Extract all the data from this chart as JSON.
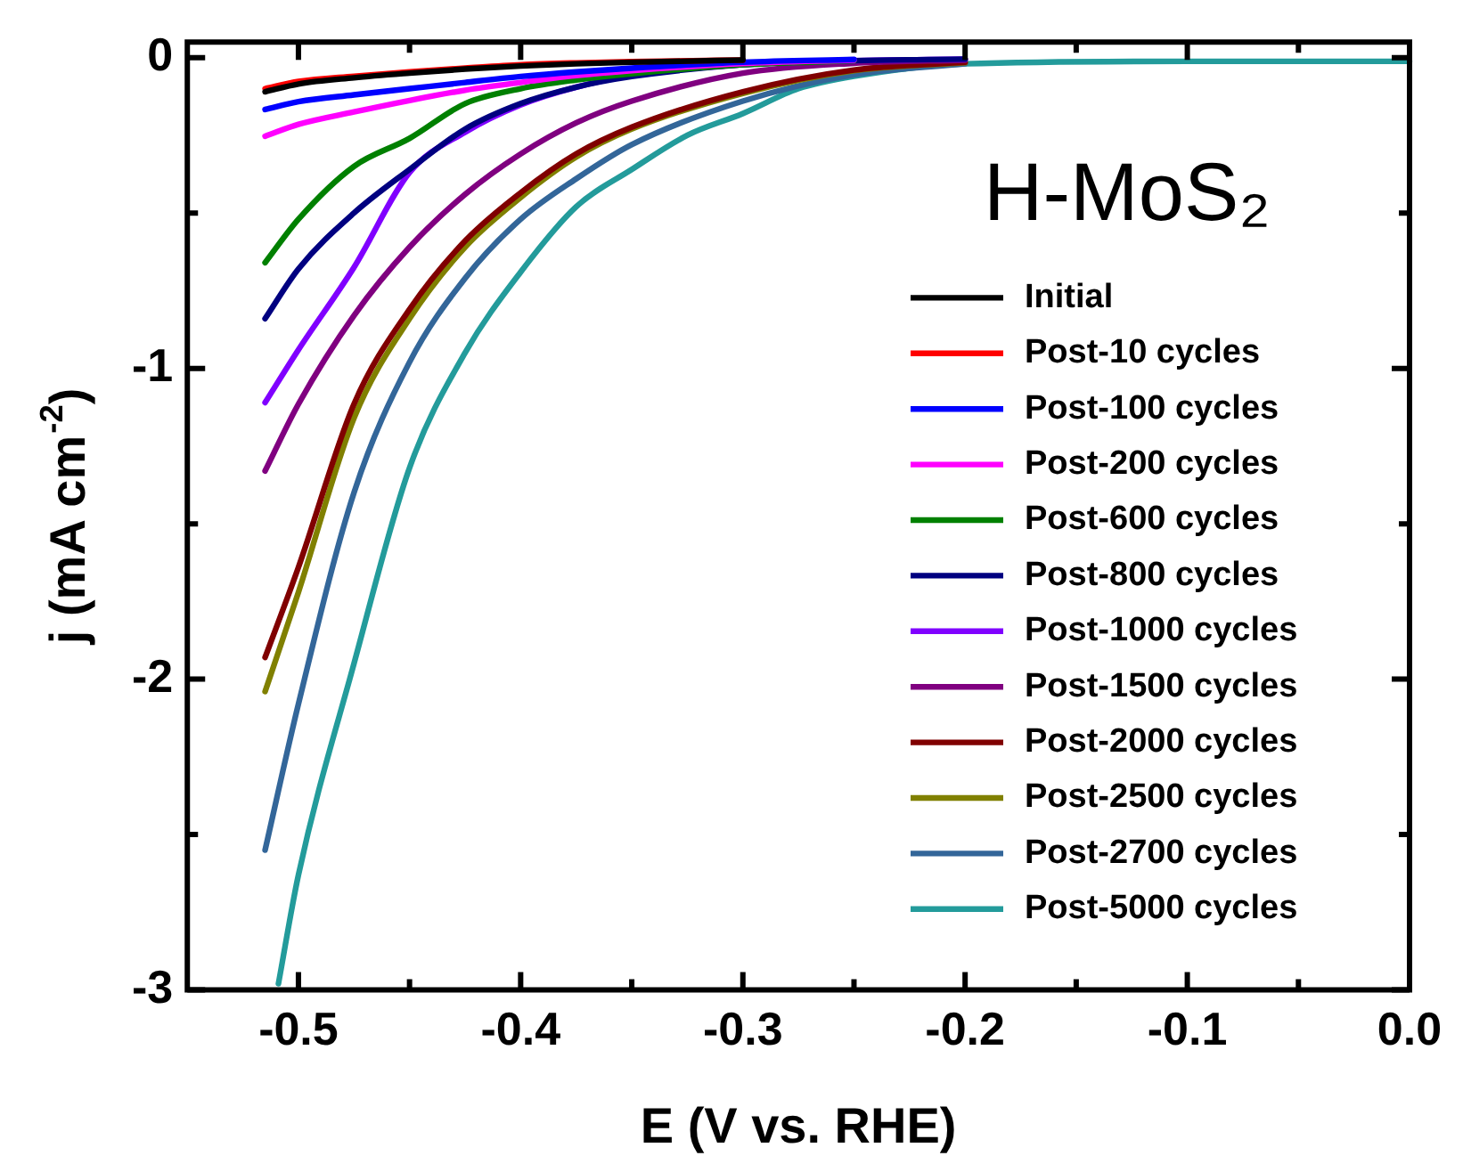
{
  "chart_data": {
    "type": "line",
    "xlabel": "E (V vs. RHE)",
    "ylabel": "j (mA cm$^{-2}$)",
    "annotations": [
      "H-MoS₂"
    ],
    "xlim": [
      -0.55,
      0
    ],
    "ylim": [
      -3,
      0.05
    ],
    "xticks": [
      {
        "value": -0.5,
        "label": "-0.5"
      },
      {
        "value": -0.45,
        "label": null
      },
      {
        "value": -0.4,
        "label": "-0.4"
      },
      {
        "value": -0.35,
        "label": null
      },
      {
        "value": -0.3,
        "label": "-0.3"
      },
      {
        "value": -0.25,
        "label": null
      },
      {
        "value": -0.2,
        "label": "-0.2"
      },
      {
        "value": -0.15,
        "label": null
      },
      {
        "value": -0.1,
        "label": "-0.1"
      },
      {
        "value": -0.05,
        "label": null
      },
      {
        "value": 0,
        "label": "0.0"
      }
    ],
    "yticks": [
      {
        "value": 0,
        "label": "0"
      },
      {
        "value": -0.5,
        "label": null
      },
      {
        "value": -1,
        "label": "-1"
      },
      {
        "value": -1.5,
        "label": null
      },
      {
        "value": -2,
        "label": "-2"
      },
      {
        "value": -2.5,
        "label": null
      },
      {
        "value": -3,
        "label": "-3"
      }
    ],
    "grid": false,
    "legend": "right",
    "marker": "none",
    "line_style": "solid",
    "x": [
      -0.515,
      -0.5,
      -0.475,
      -0.45,
      -0.425,
      -0.4,
      -0.375,
      -0.35,
      -0.3,
      -0.25,
      -0.2
    ],
    "series": [
      {
        "name": "Initial",
        "color": "#000000",
        "values": [
          -0.11,
          -0.085,
          -0.065,
          -0.05,
          -0.037,
          -0.027,
          -0.02,
          -0.015,
          -0.008,
          null,
          null
        ]
      },
      {
        "name": "Post-10 cycles",
        "color": "#ff0000",
        "values": [
          -0.1,
          -0.077,
          -0.06,
          -0.046,
          -0.034,
          -0.023,
          -0.017,
          -0.013,
          -0.008,
          null,
          null
        ]
      },
      {
        "name": "Post-100 cycles",
        "color": "#0000ff",
        "values": [
          -0.167,
          -0.142,
          -0.12,
          -0.1,
          -0.08,
          -0.061,
          -0.046,
          -0.034,
          -0.015,
          -0.006,
          null
        ]
      },
      {
        "name": "Post-200 cycles",
        "color": "#ff00ff",
        "values": [
          -0.253,
          -0.215,
          -0.175,
          -0.138,
          -0.105,
          -0.08,
          -0.058,
          -0.042,
          -0.019,
          -0.008,
          null
        ]
      },
      {
        "name": "Post-600 cycles",
        "color": "#008000",
        "values": [
          -0.66,
          -0.52,
          -0.35,
          -0.26,
          -0.148,
          -0.1,
          -0.072,
          -0.052,
          -0.023,
          -0.01,
          null
        ]
      },
      {
        "name": "Post-800 cycles",
        "color": "#000080",
        "values": [
          -0.84,
          -0.68,
          -0.5,
          -0.36,
          -0.23,
          -0.148,
          -0.095,
          -0.061,
          -0.023,
          -0.01,
          -0.005
        ]
      },
      {
        "name": "Post-1000 cycles",
        "color": "#8000ff",
        "values": [
          -1.11,
          -0.94,
          -0.675,
          -0.37,
          -0.24,
          -0.152,
          -0.095,
          -0.057,
          -0.023,
          -0.01,
          -0.005
        ]
      },
      {
        "name": "Post-1500 cycles",
        "color": "#800080",
        "values": [
          -1.33,
          -1.115,
          -0.83,
          -0.61,
          -0.44,
          -0.31,
          -0.21,
          -0.14,
          -0.05,
          -0.018,
          -0.008
        ]
      },
      {
        "name": "Post-2000 cycles",
        "color": "#800000",
        "values": [
          -1.93,
          -1.64,
          -1.115,
          -0.81,
          -0.59,
          -0.435,
          -0.31,
          -0.224,
          -0.11,
          -0.04,
          -0.015
        ]
      },
      {
        "name": "Post-2500 cycles",
        "color": "#808000",
        "values": [
          -2.04,
          -1.72,
          -1.16,
          -0.84,
          -0.61,
          -0.45,
          -0.32,
          -0.23,
          -0.115,
          -0.042,
          -0.016
        ]
      },
      {
        "name": "Post-2700 cycles",
        "color": "#336699",
        "values": [
          -2.55,
          -2.08,
          -1.4,
          -0.98,
          -0.71,
          -0.52,
          -0.39,
          -0.28,
          -0.14,
          -0.055,
          -0.02
        ]
      },
      {
        "name": "Post-5000 cycles",
        "color": "#239b9b",
        "x": [
          -0.509,
          -0.5,
          -0.475,
          -0.45,
          -0.425,
          -0.4,
          -0.375,
          -0.35,
          -0.325,
          -0.3,
          -0.275,
          -0.25,
          -0.2,
          -0.1,
          0
        ],
        "values": [
          -2.98,
          -2.63,
          -1.95,
          -1.32,
          -0.95,
          -0.69,
          -0.48,
          -0.36,
          -0.25,
          -0.18,
          -0.1,
          -0.06,
          -0.02,
          -0.012,
          -0.012
        ]
      }
    ]
  }
}
